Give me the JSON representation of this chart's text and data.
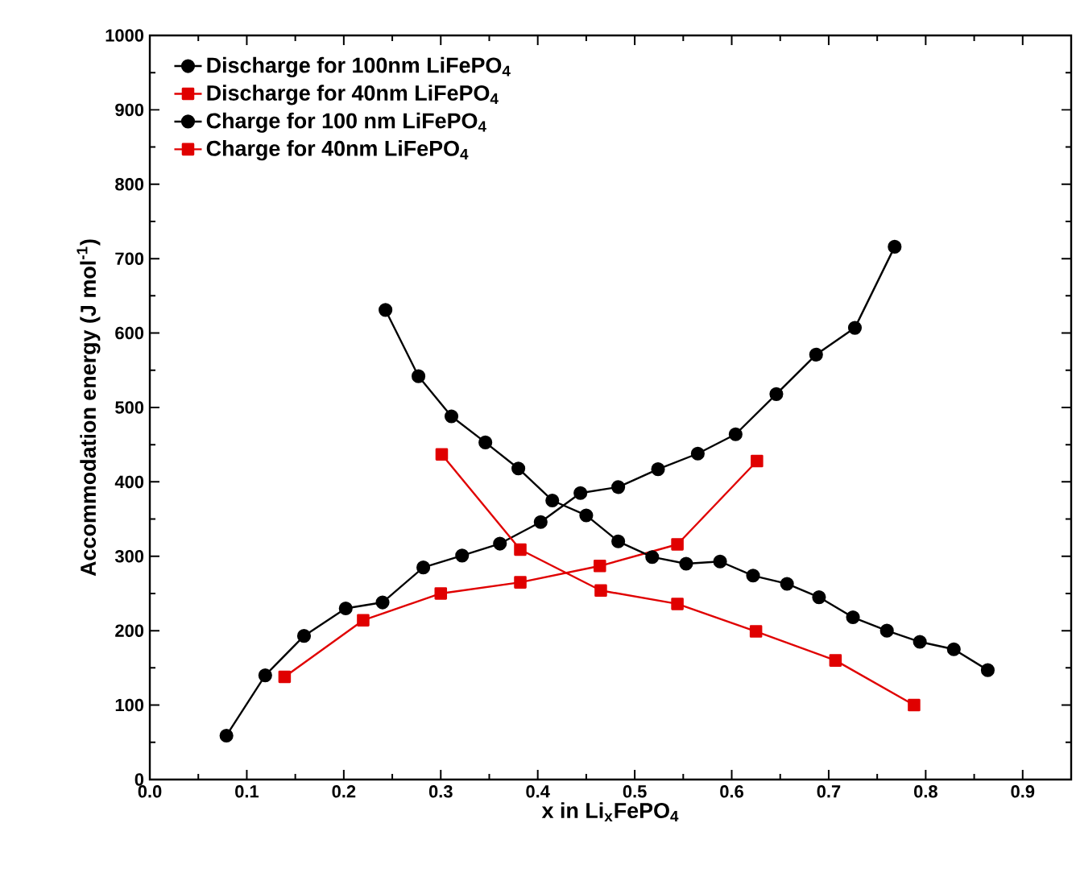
{
  "chart_data": {
    "type": "line",
    "xlabel": "x in Li$_{x}$FePO$_{4}$",
    "ylabel": "Accommodation energy (J mol$^{-1}$)",
    "xlim": [
      0,
      0.95
    ],
    "ylim": [
      0,
      1000
    ],
    "xticks": [
      {
        "value": 0,
        "label": "0.0"
      },
      0.1,
      0.2,
      0.3,
      0.4,
      0.5,
      0.6,
      0.7,
      0.8,
      0.9
    ],
    "yticks": [
      0,
      100,
      200,
      300,
      400,
      500,
      600,
      700,
      800,
      900,
      1000
    ],
    "grid": false,
    "legend": "top left",
    "line_style": "solid",
    "series": [
      {
        "name": "Discharge for 100nm LiFePO$_{4}$",
        "color": "#000000",
        "marker": "circle",
        "x": [
          0.079,
          0.119,
          0.159,
          0.202,
          0.24,
          0.282,
          0.322,
          0.361,
          0.403,
          0.444,
          0.483,
          0.524,
          0.565,
          0.604,
          0.646,
          0.687,
          0.727,
          0.768
        ],
        "values": [
          59,
          140,
          193,
          230,
          238,
          285,
          301,
          317,
          346,
          385,
          393,
          417,
          438,
          464,
          518,
          571,
          607,
          716
        ]
      },
      {
        "name": "Discharge for 40nm LiFePO$_{4}$",
        "color": "#e00000",
        "marker": "square",
        "x": [
          0.139,
          0.22,
          0.3,
          0.382,
          0.464,
          0.544,
          0.626
        ],
        "values": [
          138,
          214,
          250,
          265,
          287,
          316,
          428
        ]
      },
      {
        "name": "Charge for 100 nm LiFePO$_{4}$",
        "color": "#000000",
        "marker": "circle",
        "x": [
          0.243,
          0.277,
          0.311,
          0.346,
          0.38,
          0.415,
          0.45,
          0.483,
          0.518,
          0.553,
          0.588,
          0.622,
          0.657,
          0.69,
          0.725,
          0.76,
          0.794,
          0.829,
          0.864
        ],
        "values": [
          631,
          542,
          488,
          453,
          418,
          375,
          355,
          320,
          299,
          290,
          293,
          274,
          263,
          245,
          218,
          200,
          185,
          175,
          147
        ]
      },
      {
        "name": "Charge for 40nm LiFePO$_{4}$",
        "color": "#e00000",
        "marker": "square",
        "x": [
          0.301,
          0.382,
          0.465,
          0.544,
          0.625,
          0.707,
          0.788
        ],
        "values": [
          437,
          309,
          254,
          236,
          199,
          160,
          100
        ]
      }
    ]
  }
}
